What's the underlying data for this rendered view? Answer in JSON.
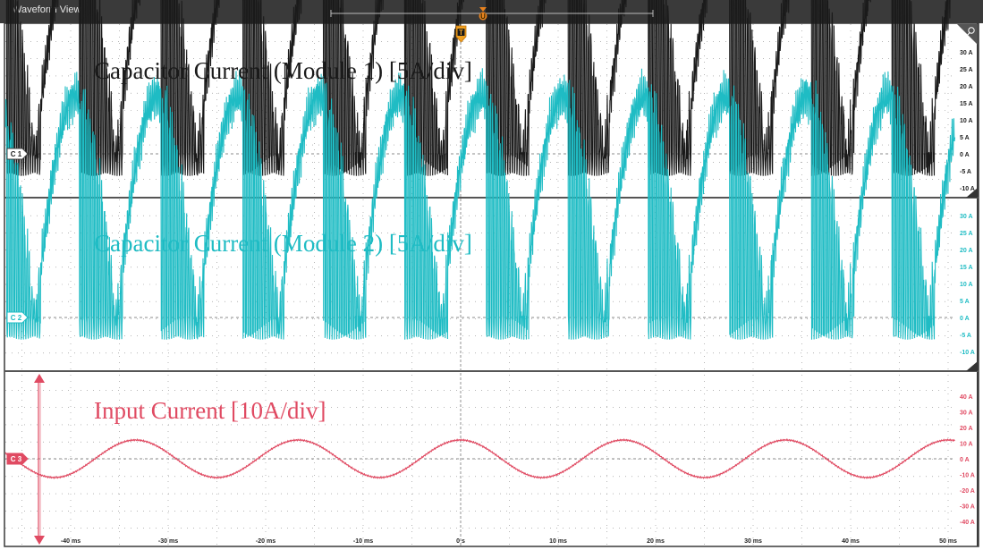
{
  "window": {
    "title": "Waveform View"
  },
  "trigger_marker": "T",
  "position_marker": "U",
  "colors": {
    "ch1": "#1a1a1a",
    "ch2": "#1fbcc4",
    "ch3": "#e04a62",
    "grid": "#8a8a8a",
    "frame": "#3a3a3a"
  },
  "panels": [
    {
      "channel": "C 1",
      "label": "Capacitor Current (Module 1) [5A/div]",
      "y_ticks": [
        "30 A",
        "25 A",
        "20 A",
        "15 A",
        "10 A",
        "5 A",
        "0 A",
        "-5 A",
        "-10 A"
      ]
    },
    {
      "channel": "C 2",
      "label": "Capacitor Current (Module 2) [5A/div]",
      "y_ticks": [
        "30 A",
        "25 A",
        "20 A",
        "15 A",
        "10 A",
        "5 A",
        "0 A",
        "-5 A",
        "-10 A"
      ]
    },
    {
      "channel": "C 3",
      "label": "Input Current [10A/div]",
      "y_ticks": [
        "40 A",
        "30 A",
        "20 A",
        "10 A",
        "0 A",
        "-10 A",
        "-20 A",
        "-30 A",
        "-40 A"
      ]
    }
  ],
  "x_ticks": [
    "-40 ms",
    "-30 ms",
    "-20 ms",
    "-10 ms",
    "0 s",
    "10 ms",
    "20 ms",
    "30 ms",
    "40 ms",
    "50 ms"
  ],
  "chart_data": [
    {
      "type": "line",
      "title": "Capacitor Current (Module 1) [5A/div]",
      "xlabel": "",
      "ylabel": "",
      "x_unit": "ms",
      "y_unit": "A",
      "xlim": [
        -47,
        52
      ],
      "ylim": [
        -10,
        30
      ],
      "x_ticks": [
        -40,
        -30,
        -20,
        -10,
        0,
        10,
        20,
        30,
        40,
        50
      ],
      "y_ticks": [
        30,
        25,
        20,
        15,
        10,
        5,
        0,
        -5,
        -10
      ],
      "series": [
        {
          "shape": "rectified-sine envelope with dense switching-ripple spikes",
          "period_ms": 8.33,
          "peak_A": 13,
          "baseline_A": 0
        }
      ]
    },
    {
      "type": "line",
      "title": "Capacitor Current (Module 2) [5A/div]",
      "xlabel": "",
      "ylabel": "",
      "x_unit": "ms",
      "y_unit": "A",
      "xlim": [
        -47,
        52
      ],
      "ylim": [
        -10,
        30
      ],
      "x_ticks": [
        -40,
        -30,
        -20,
        -10,
        0,
        10,
        20,
        30,
        40,
        50
      ],
      "y_ticks": [
        30,
        25,
        20,
        15,
        10,
        5,
        0,
        -5,
        -10
      ],
      "series": [
        {
          "shape": "rectified-sine envelope with dense switching-ripple spikes",
          "period_ms": 8.33,
          "peak_A": 13,
          "baseline_A": 0
        }
      ]
    },
    {
      "type": "line",
      "title": "Input Current [10A/div]",
      "xlabel": "",
      "ylabel": "",
      "x_unit": "ms",
      "y_unit": "A",
      "xlim": [
        -47,
        52
      ],
      "ylim": [
        -40,
        40
      ],
      "x_ticks": [
        -40,
        -30,
        -20,
        -10,
        0,
        10,
        20,
        30,
        40,
        50
      ],
      "y_ticks": [
        40,
        30,
        20,
        10,
        0,
        -10,
        -20,
        -30,
        -40
      ],
      "series": [
        {
          "shape": "sine",
          "period_ms": 16.67,
          "amplitude_A": 12,
          "peaks_ms": [
            -33.3,
            -16.7,
            0,
            16.7,
            33.3
          ],
          "troughs_ms": [
            -41.7,
            -25,
            -8.3,
            8.3,
            25,
            41.7
          ]
        }
      ]
    }
  ]
}
